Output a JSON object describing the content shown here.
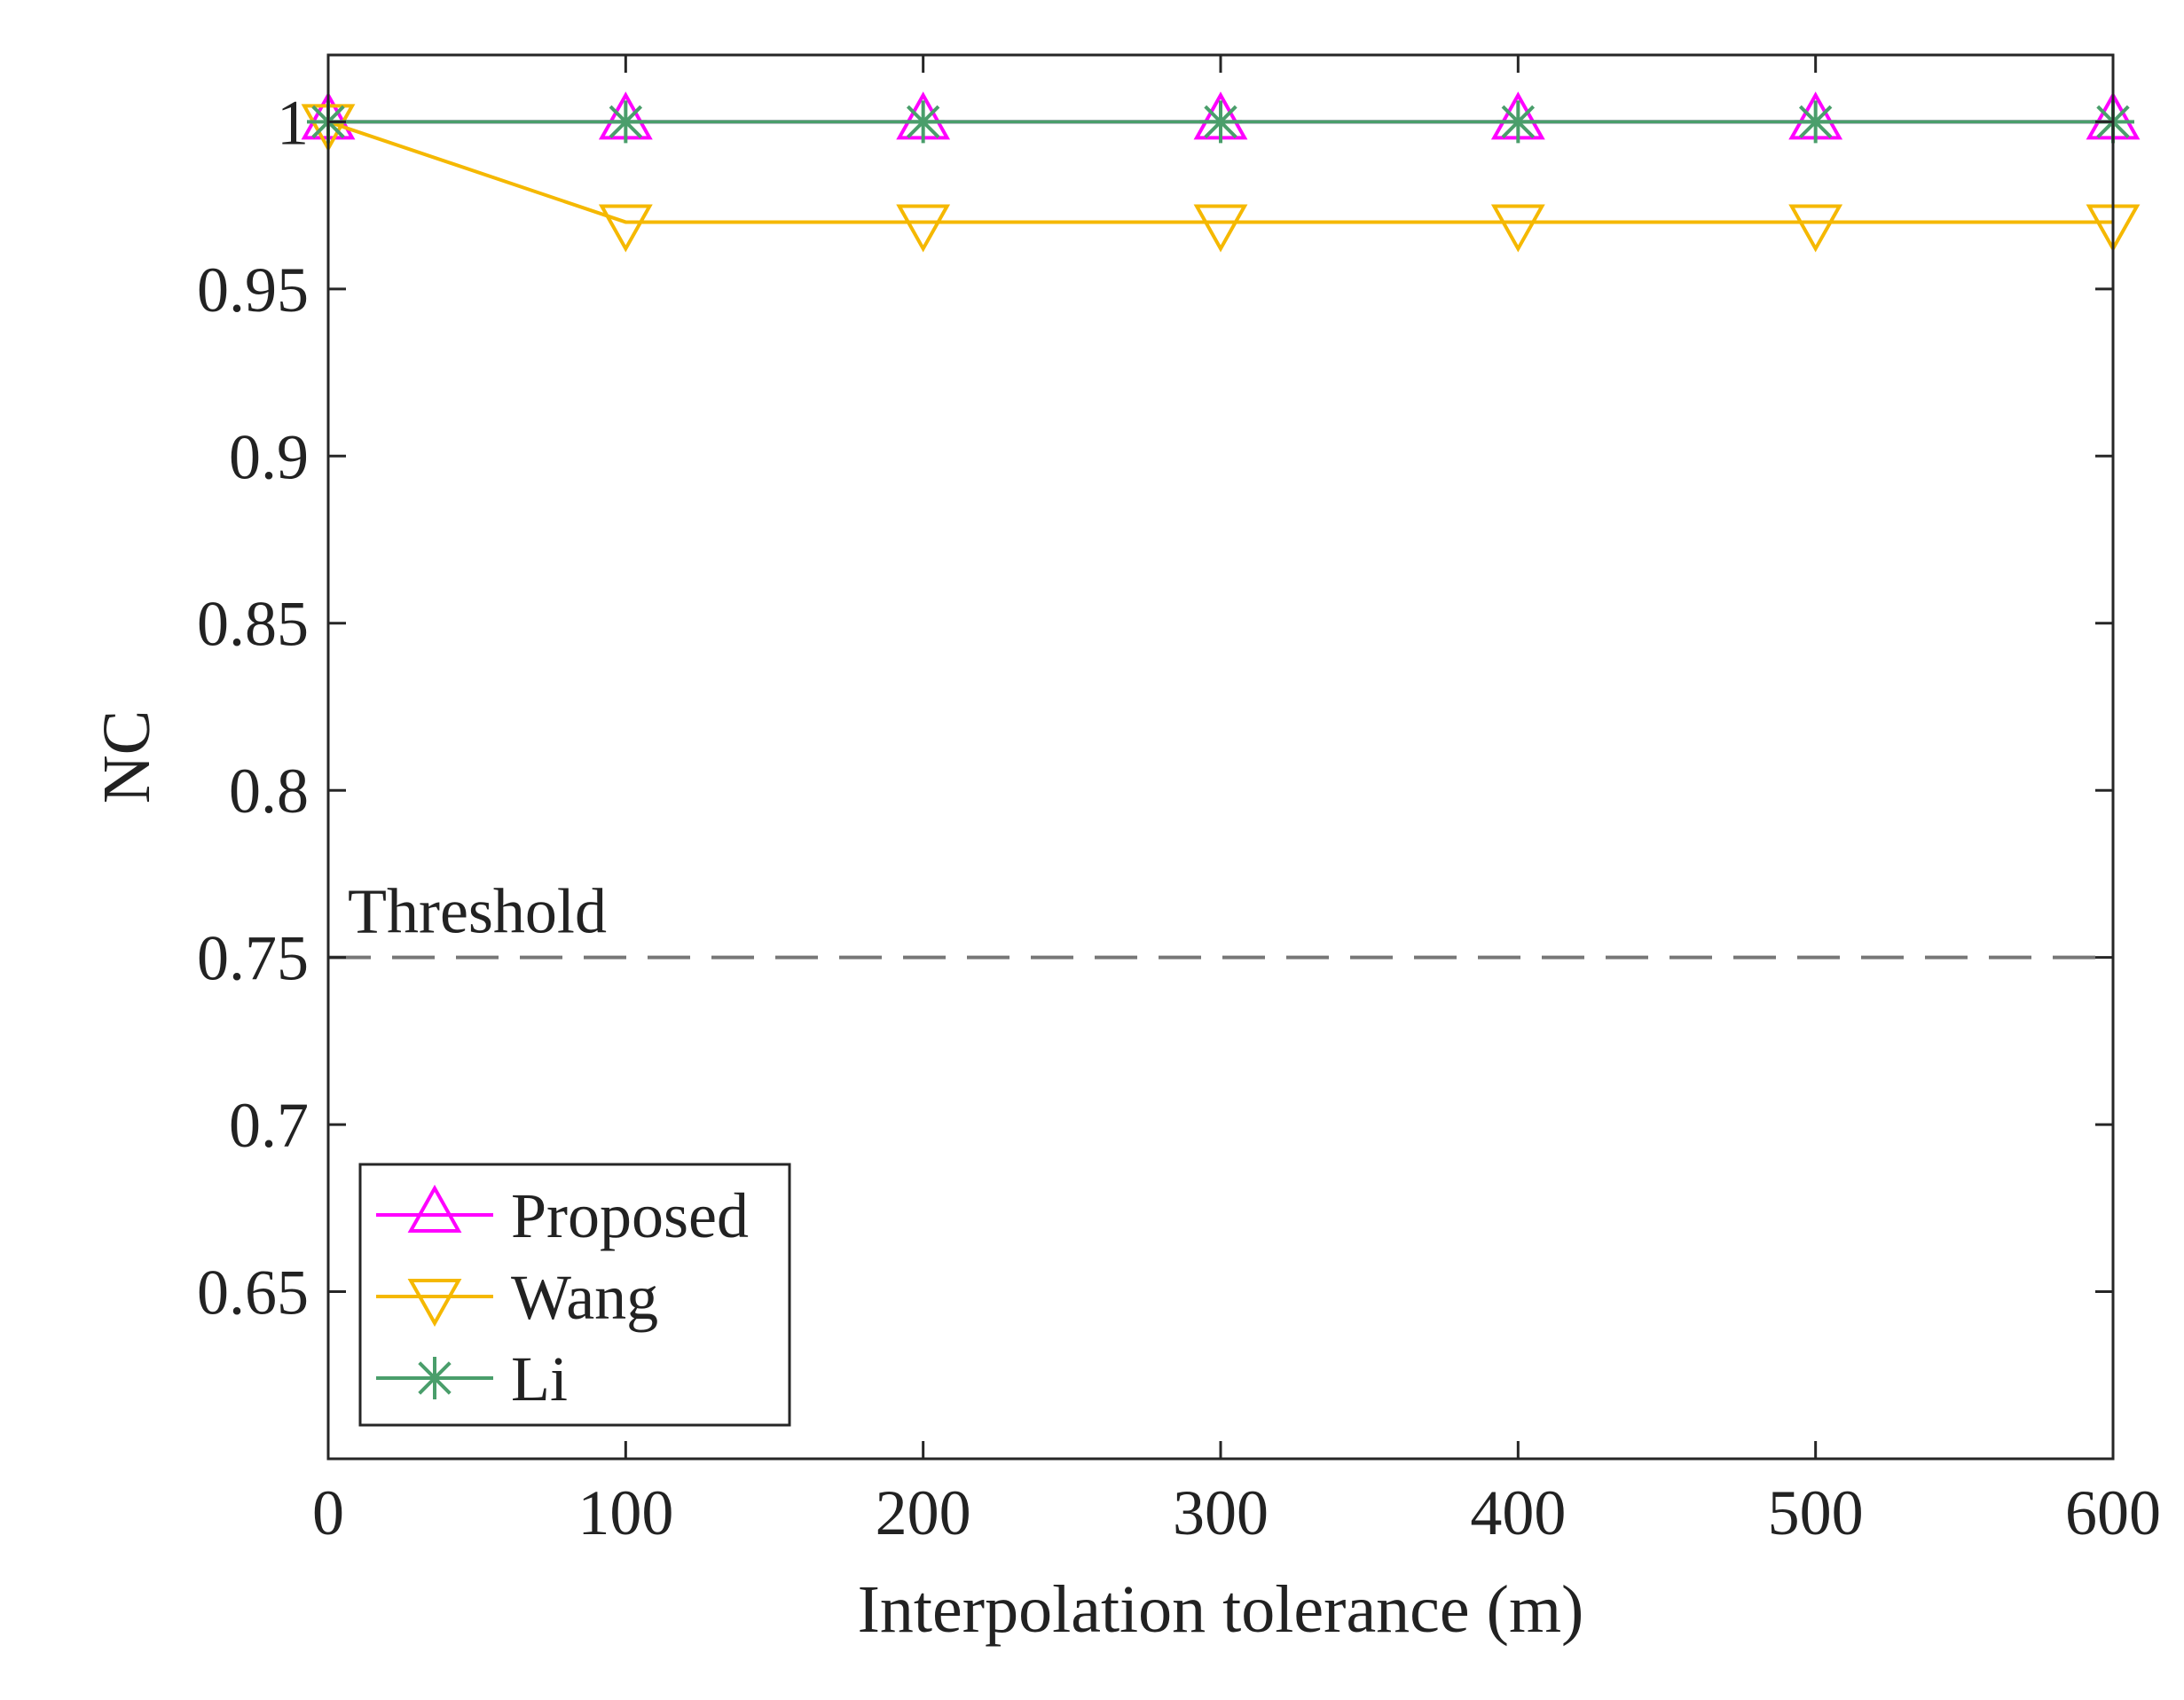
{
  "chart_data": {
    "type": "line",
    "title": "",
    "xlabel": "Interpolation tolerance (m)",
    "ylabel": "NC",
    "x": [
      0,
      100,
      200,
      300,
      400,
      500,
      600
    ],
    "xlim": [
      0,
      600
    ],
    "ylim": [
      0.6,
      1.02
    ],
    "xticks": [
      0,
      100,
      200,
      300,
      400,
      500,
      600
    ],
    "xtick_labels": [
      "0",
      "100",
      "200",
      "300",
      "400",
      "500",
      "600"
    ],
    "yticks": [
      0.65,
      0.7,
      0.75,
      0.8,
      0.85,
      0.9,
      0.95,
      1
    ],
    "ytick_labels": [
      "0.65",
      "0.7",
      "0.75",
      "0.8",
      "0.85",
      "0.9",
      "0.95",
      "1"
    ],
    "grid": false,
    "legend_position": "bottom-left",
    "series": [
      {
        "name": "Proposed",
        "values": [
          1,
          1,
          1,
          1,
          1,
          1,
          1
        ],
        "color": "#ff00ff",
        "marker": "triangle-up"
      },
      {
        "name": "Wang",
        "values": [
          1,
          0.97,
          0.97,
          0.97,
          0.97,
          0.97,
          0.97
        ],
        "color": "#f5b800",
        "marker": "triangle-down"
      },
      {
        "name": "Li",
        "values": [
          1,
          1,
          1,
          1,
          1,
          1,
          1
        ],
        "color": "#4a9e6b",
        "marker": "asterisk"
      }
    ],
    "threshold": {
      "value": 0.75,
      "label": "Threshold",
      "color": "#777777"
    }
  }
}
